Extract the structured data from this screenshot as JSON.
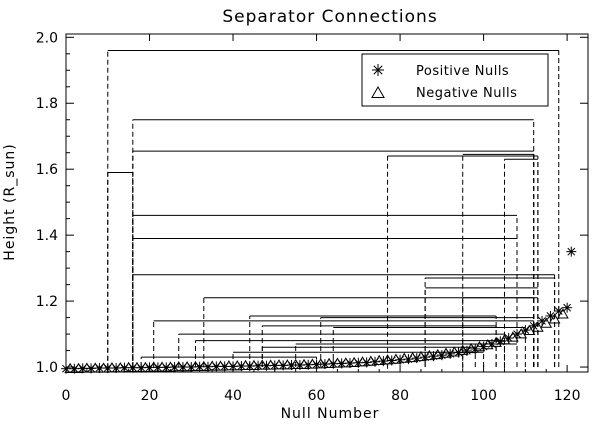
{
  "chart_data": {
    "type": "line",
    "title": "Separator Connections",
    "xlabel": "Null Number",
    "ylabel": "Height (R_sun)",
    "xlim": [
      0,
      125
    ],
    "ylim": [
      0.985,
      2.01
    ],
    "xticks": [
      0,
      20,
      40,
      60,
      80,
      100,
      120
    ],
    "yticks": [
      1.0,
      1.2,
      1.4,
      1.6,
      1.8,
      2.0
    ],
    "xtick_labels": [
      "0",
      "20",
      "40",
      "60",
      "80",
      "100",
      "120"
    ],
    "ytick_labels": [
      "1.0",
      "1.2",
      "1.4",
      "1.6",
      "1.8",
      "2.0"
    ],
    "grid": false,
    "legend": {
      "placement": "top-right",
      "entries": [
        {
          "marker": "asterisk",
          "label": "Positive Nulls"
        },
        {
          "marker": "triangle",
          "label": "Negative Nulls"
        }
      ]
    },
    "connections": [
      {
        "n1": 10,
        "n2": 118,
        "h": 1.96
      },
      {
        "n1": 16,
        "n2": 112,
        "h": 1.75
      },
      {
        "n1": 16,
        "n2": 112,
        "h": 1.655
      },
      {
        "n1": 16,
        "n2": 108,
        "h": 1.46
      },
      {
        "n1": 16,
        "n2": 108,
        "h": 1.39
      },
      {
        "n1": 16,
        "n2": 117,
        "h": 1.28
      },
      {
        "n1": 33,
        "n2": 112,
        "h": 1.21
      },
      {
        "n1": 21,
        "n2": 112,
        "h": 1.14
      },
      {
        "n1": 27,
        "n2": 105,
        "h": 1.1
      },
      {
        "n1": 31,
        "n2": 105,
        "h": 1.08
      },
      {
        "n1": 44,
        "n2": 103,
        "h": 1.155
      },
      {
        "n1": 47,
        "n2": 103,
        "h": 1.125
      },
      {
        "n1": 47,
        "n2": 98,
        "h": 1.06
      },
      {
        "n1": 61,
        "n2": 112,
        "h": 1.15
      },
      {
        "n1": 64,
        "n2": 110,
        "h": 1.12
      },
      {
        "n1": 77,
        "n2": 113,
        "h": 1.64
      },
      {
        "n1": 95,
        "n2": 112,
        "h": 1.645
      },
      {
        "n1": 86,
        "n2": 117,
        "h": 1.27
      },
      {
        "n1": 86,
        "n2": 113,
        "h": 1.24
      },
      {
        "n1": 95,
        "n2": 113,
        "h": 1.21
      },
      {
        "n1": 105,
        "n2": 113,
        "h": 1.63
      },
      {
        "n1": 10,
        "n2": 16,
        "h": 1.59
      },
      {
        "n1": 18,
        "n2": 60,
        "h": 1.03
      },
      {
        "n1": 40,
        "n2": 100,
        "h": 1.045
      },
      {
        "n1": 55,
        "n2": 108,
        "h": 1.07
      }
    ],
    "positive_nulls": {
      "n": [
        0,
        2,
        4,
        6,
        8,
        10,
        12,
        14,
        16,
        18,
        20,
        22,
        24,
        26,
        28,
        30,
        32,
        34,
        36,
        38,
        40,
        42,
        44,
        46,
        48,
        50,
        52,
        54,
        56,
        58,
        60,
        62,
        64,
        66,
        68,
        70,
        72,
        74,
        76,
        78,
        80,
        82,
        84,
        86,
        88,
        90,
        92,
        94,
        96,
        98,
        100,
        102,
        104,
        106,
        108,
        110,
        112,
        114,
        116,
        118,
        120,
        121
      ],
      "h": [
        0.995,
        0.995,
        0.996,
        0.996,
        0.997,
        0.997,
        0.997,
        0.998,
        0.998,
        0.998,
        0.999,
        0.999,
        0.999,
        1.0,
        1.0,
        1.0,
        1.001,
        1.001,
        1.002,
        1.002,
        1.002,
        1.003,
        1.003,
        1.004,
        1.004,
        1.005,
        1.005,
        1.006,
        1.006,
        1.007,
        1.008,
        1.009,
        1.01,
        1.011,
        1.012,
        1.013,
        1.014,
        1.016,
        1.018,
        1.02,
        1.022,
        1.024,
        1.027,
        1.03,
        1.033,
        1.036,
        1.04,
        1.044,
        1.049,
        1.055,
        1.062,
        1.07,
        1.078,
        1.088,
        1.1,
        1.112,
        1.125,
        1.14,
        1.155,
        1.17,
        1.18,
        1.35
      ]
    },
    "negative_nulls": {
      "n": [
        1,
        3,
        5,
        7,
        9,
        11,
        13,
        15,
        17,
        19,
        21,
        23,
        25,
        27,
        29,
        31,
        33,
        35,
        37,
        39,
        41,
        43,
        45,
        47,
        49,
        51,
        53,
        55,
        57,
        59,
        61,
        63,
        65,
        67,
        69,
        71,
        73,
        75,
        77,
        79,
        81,
        83,
        85,
        87,
        89,
        91,
        93,
        95,
        97,
        99,
        101,
        103,
        105,
        107,
        109,
        111,
        113,
        115,
        117,
        119
      ],
      "h": [
        0.995,
        0.995,
        0.996,
        0.996,
        0.996,
        0.997,
        0.997,
        0.998,
        0.998,
        0.998,
        0.999,
        0.999,
        0.999,
        1.0,
        1.0,
        1.001,
        1.001,
        1.002,
        1.002,
        1.003,
        1.003,
        1.004,
        1.004,
        1.005,
        1.005,
        1.006,
        1.006,
        1.007,
        1.007,
        1.008,
        1.009,
        1.01,
        1.011,
        1.012,
        1.013,
        1.015,
        1.017,
        1.019,
        1.021,
        1.023,
        1.026,
        1.028,
        1.031,
        1.034,
        1.037,
        1.041,
        1.045,
        1.05,
        1.055,
        1.061,
        1.067,
        1.074,
        1.082,
        1.09,
        1.1,
        1.11,
        1.12,
        1.132,
        1.145,
        1.16
      ]
    }
  }
}
